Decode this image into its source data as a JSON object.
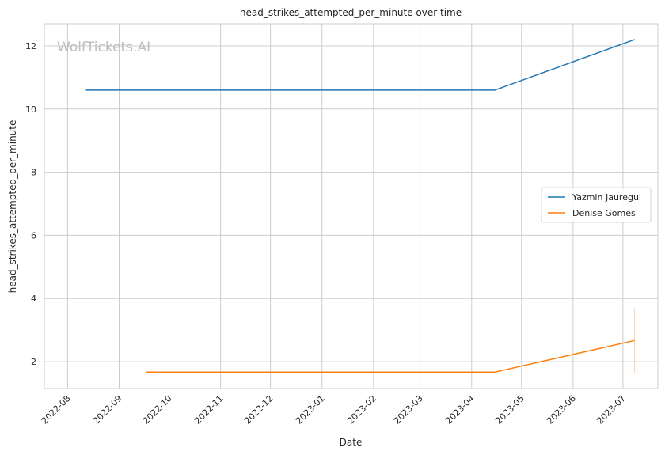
{
  "watermark": "WolfTickets.AI",
  "chart_data": {
    "type": "line",
    "title": "head_strikes_attempted_per_minute over time",
    "xlabel": "Date",
    "ylabel": "head_strikes_attempted_per_minute",
    "x_axis": "date",
    "xlim": [
      "2022-07-18",
      "2023-07-22"
    ],
    "ylim": [
      1.15,
      12.7
    ],
    "x_ticks": [
      "2022-08",
      "2022-09",
      "2022-10",
      "2022-11",
      "2022-12",
      "2023-01",
      "2023-02",
      "2023-03",
      "2023-04",
      "2023-05",
      "2023-06",
      "2023-07"
    ],
    "y_ticks": [
      2,
      4,
      6,
      8,
      10,
      12
    ],
    "grid": true,
    "legend_position": "center-right",
    "series": [
      {
        "name": "Yazmin Jauregui",
        "color": "#1f77b4",
        "x": [
          "2022-08-12",
          "2023-04-15",
          "2023-07-08"
        ],
        "y": [
          10.6,
          10.6,
          12.2
        ]
      },
      {
        "name": "Denise Gomes",
        "color": "#ff7f0e",
        "x": [
          "2022-09-17",
          "2023-04-15",
          "2023-07-08"
        ],
        "y": [
          1.67,
          1.67,
          2.67
        ]
      }
    ],
    "error_bar": {
      "series": "Denise Gomes",
      "x": "2023-07-08",
      "low": 1.65,
      "high": 3.7,
      "color": "#ff7f0e"
    }
  }
}
